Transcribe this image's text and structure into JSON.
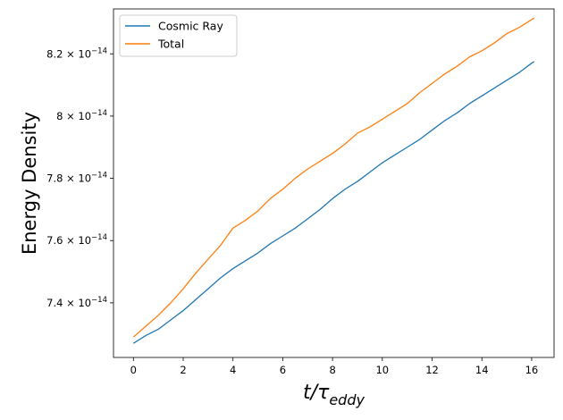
{
  "chart_data": {
    "type": "line",
    "xlabel_base": "t/τ",
    "xlabel_sub": "eddy",
    "ylabel": "Energy Density",
    "xlim": [
      -0.8,
      16.9
    ],
    "ylim": [
      7.2245e-14,
      8.3443e-14
    ],
    "x_ticks": [
      0,
      2,
      4,
      6,
      8,
      10,
      12,
      14,
      16
    ],
    "y_ticks": [
      {
        "value": 7.4e-14,
        "mantissa": "7.4",
        "base": "× 10",
        "exp": "−14"
      },
      {
        "value": 7.6e-14,
        "mantissa": "7.6",
        "base": "× 10",
        "exp": "−14"
      },
      {
        "value": 7.8e-14,
        "mantissa": "7.8",
        "base": "× 10",
        "exp": "−14"
      },
      {
        "value": 8e-14,
        "mantissa": "8",
        "base": "× 10",
        "exp": "−14"
      },
      {
        "value": 8.2e-14,
        "mantissa": "8.2",
        "base": "× 10",
        "exp": "−14"
      }
    ],
    "legend_position": "top-left",
    "series": [
      {
        "name": "Cosmic Ray",
        "color": "#1f77b4",
        "x": [
          0,
          0.5,
          1,
          1.5,
          2,
          2.5,
          3,
          3.5,
          4,
          4.5,
          5,
          5.5,
          6,
          6.5,
          7,
          7.5,
          8,
          8.5,
          9,
          9.5,
          10,
          10.5,
          11,
          11.5,
          12,
          12.5,
          13,
          13.5,
          14,
          14.5,
          15,
          15.5,
          16,
          16.1
        ],
        "y": [
          7.27e-14,
          7.295e-14,
          7.315e-14,
          7.345e-14,
          7.375e-14,
          7.41e-14,
          7.445e-14,
          7.48e-14,
          7.51e-14,
          7.535e-14,
          7.56e-14,
          7.59e-14,
          7.615e-14,
          7.64e-14,
          7.67e-14,
          7.7e-14,
          7.735e-14,
          7.765e-14,
          7.79e-14,
          7.82e-14,
          7.85e-14,
          7.875e-14,
          7.9e-14,
          7.925e-14,
          7.955e-14,
          7.985e-14,
          8.01e-14,
          8.04e-14,
          8.065e-14,
          8.09e-14,
          8.115e-14,
          8.14e-14,
          8.17e-14,
          8.175e-14
        ]
      },
      {
        "name": "Total",
        "color": "#ff7f0e",
        "x": [
          0,
          0.5,
          1,
          1.5,
          2,
          2.5,
          3,
          3.5,
          4,
          4.5,
          5,
          5.5,
          6,
          6.5,
          7,
          7.5,
          8,
          8.5,
          9,
          9.5,
          10,
          10.5,
          11,
          11.5,
          12,
          12.5,
          13,
          13.5,
          14,
          14.5,
          15,
          15.5,
          16,
          16.1
        ],
        "y": [
          7.29e-14,
          7.325e-14,
          7.36e-14,
          7.4e-14,
          7.445e-14,
          7.495e-14,
          7.54e-14,
          7.585e-14,
          7.64e-14,
          7.665e-14,
          7.695e-14,
          7.735e-14,
          7.765e-14,
          7.8e-14,
          7.83e-14,
          7.855e-14,
          7.88e-14,
          7.91e-14,
          7.945e-14,
          7.965e-14,
          7.99e-14,
          8.015e-14,
          8.04e-14,
          8.075e-14,
          8.105e-14,
          8.135e-14,
          8.16e-14,
          8.19e-14,
          8.21e-14,
          8.235e-14,
          8.265e-14,
          8.285e-14,
          8.31e-14,
          8.315e-14
        ]
      }
    ]
  }
}
